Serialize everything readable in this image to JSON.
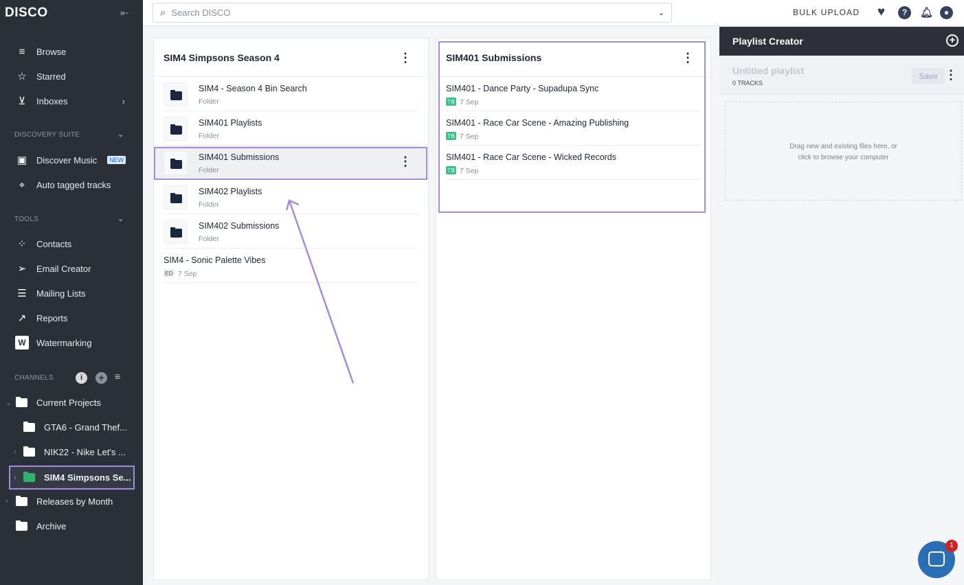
{
  "app": {
    "logo": "DISCO"
  },
  "sidebar": {
    "nav": [
      {
        "label": "Browse",
        "icon": "browse-icon"
      },
      {
        "label": "Starred",
        "icon": "star-icon"
      },
      {
        "label": "Inboxes",
        "icon": "inbox-icon"
      }
    ],
    "discovery_title": "DISCOVERY SUITE",
    "discovery": [
      {
        "label": "Discover Music",
        "badge": "NEW"
      },
      {
        "label": "Auto tagged tracks"
      }
    ],
    "tools_title": "TOOLS",
    "tools": [
      {
        "label": "Contacts"
      },
      {
        "label": "Email Creator"
      },
      {
        "label": "Mailing Lists"
      },
      {
        "label": "Reports"
      },
      {
        "label": "Watermarking"
      }
    ],
    "channels_title": "CHANNELS",
    "channels": [
      {
        "label": "Current Projects"
      },
      {
        "label": "GTA6 - Grand Thef..."
      },
      {
        "label": "NIK22 - Nike Let's ..."
      },
      {
        "label": "SIM4 Simpsons Se..."
      },
      {
        "label": "Releases by Month"
      },
      {
        "label": "Archive"
      }
    ]
  },
  "topbar": {
    "search_placeholder": "Search DISCO",
    "bulk_upload": "BULK UPLOAD"
  },
  "panel1": {
    "title": "SIM4 Simpsons Season 4",
    "items": [
      {
        "title": "SIM4 - Season 4 Bin Search",
        "sub": "Folder"
      },
      {
        "title": "SIM401 Playlists",
        "sub": "Folder"
      },
      {
        "title": "SIM401 Submissions",
        "sub": "Folder"
      },
      {
        "title": "SIM402 Playlists",
        "sub": "Folder"
      },
      {
        "title": "SIM402 Submissions",
        "sub": "Folder"
      },
      {
        "title": "SIM4 - Sonic Palette Vibes",
        "badge": "ED",
        "date": "7 Sep"
      }
    ]
  },
  "panel2": {
    "title": "SIM401 Submissions",
    "items": [
      {
        "title": "SIM401 - Dance Party - Supadupa Sync",
        "badge": "TB",
        "date": "7 Sep"
      },
      {
        "title": "SIM401 - Race Car Scene - Amazing Publishing",
        "badge": "TB",
        "date": "7 Sep"
      },
      {
        "title": "SIM401 - Race Car Scene - Wicked Records",
        "badge": "TB",
        "date": "7 Sep"
      }
    ]
  },
  "playlist": {
    "header": "Playlist Creator",
    "name": "Untitled playlist",
    "tracks": "0 TRACKS",
    "save": "Save",
    "drop_line1": "Drag new and existing files here, or",
    "drop_line2": "click to browse your computer"
  },
  "chat": {
    "unread": "1"
  },
  "colors": {
    "sidebar": "#2b2f37",
    "highlight": "#a58be0",
    "badge_green": "#3dbf8a",
    "folder_active": "#2fb36c"
  }
}
